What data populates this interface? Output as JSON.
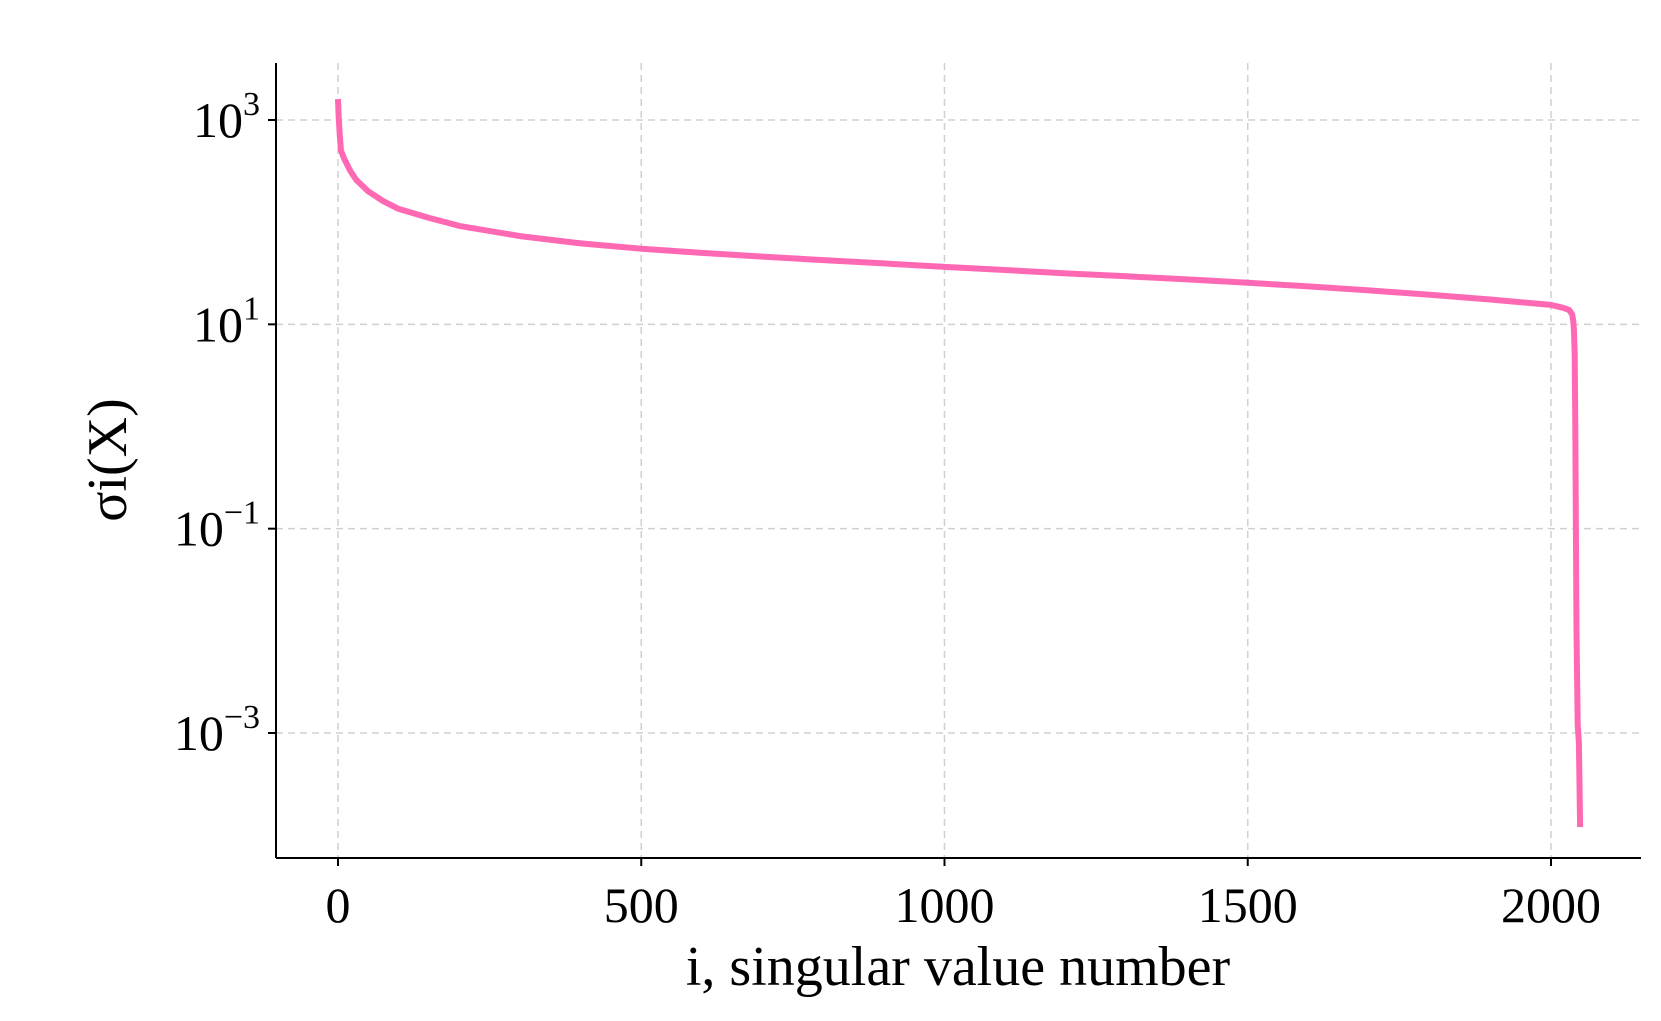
{
  "chart_data": {
    "type": "line",
    "title": "",
    "xlabel": "i, singular value number",
    "ylabel": "σi(X)",
    "x_scale": "linear",
    "y_scale": "log",
    "xlim": [
      -100,
      2150
    ],
    "ylim": [
      8e-05,
      4000
    ],
    "grid": true,
    "legend": "none",
    "line_color": "#ff69b4",
    "x_ticks": [
      {
        "value": 0,
        "label": "0"
      },
      {
        "value": 500,
        "label": "500"
      },
      {
        "value": 1000,
        "label": "1000"
      },
      {
        "value": 1500,
        "label": "1500"
      },
      {
        "value": 2000,
        "label": "2000"
      }
    ],
    "y_ticks": [
      {
        "value": 1000,
        "base": "10",
        "exp": "3"
      },
      {
        "value": 10,
        "base": "10",
        "exp": "1"
      },
      {
        "value": 0.1,
        "base": "10",
        "exp": "−1"
      },
      {
        "value": 0.001,
        "base": "10",
        "exp": "−3"
      }
    ],
    "series": [
      {
        "x": [
          0,
          1,
          3,
          5,
          10,
          20,
          30,
          50,
          75,
          100,
          150,
          200,
          300,
          400,
          500,
          600,
          700,
          800,
          900,
          1000,
          1100,
          1200,
          1300,
          1400,
          1500,
          1600,
          1700,
          1800,
          1900,
          2000,
          2020,
          2030,
          2035,
          2037,
          2038,
          2039,
          2040,
          2041,
          2042,
          2044,
          2046,
          2048
        ],
        "y": [
          1600,
          1100,
          700,
          500,
          420,
          320,
          260,
          200,
          160,
          135,
          110,
          92,
          73,
          62,
          55,
          50,
          46,
          42.5,
          39.5,
          36.5,
          34,
          31.5,
          29.5,
          27.5,
          25.5,
          23.5,
          21.5,
          19.5,
          17.5,
          15.5,
          14.5,
          13.8,
          12.5,
          10.5,
          8.5,
          5,
          1,
          0.1,
          0.01,
          0.0012,
          0.0008,
          0.00012
        ]
      }
    ]
  }
}
